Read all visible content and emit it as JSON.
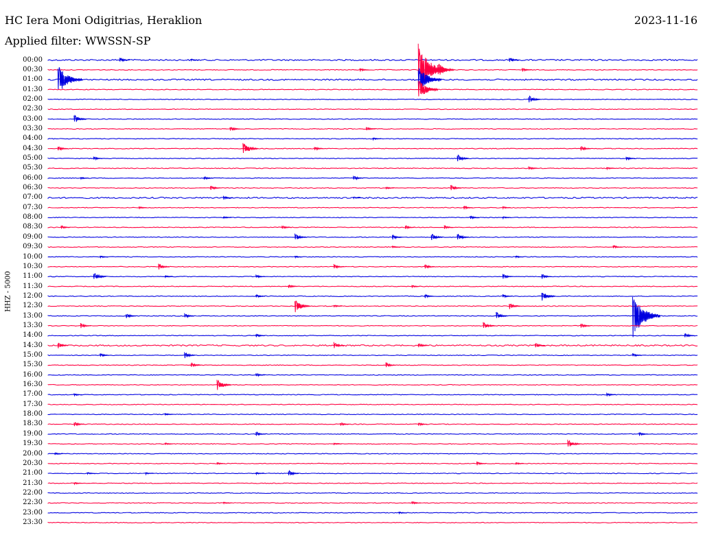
{
  "header": {
    "station": "HC Iera Moni Odigitrias, Heraklion",
    "date": "2023-11-16",
    "filter": "Applied filter: WWSSN-SP"
  },
  "chart_data": {
    "type": "line",
    "title": "HC Iera Moni Odigitrias, Heraklion",
    "ylabel": "HHZ - 5000",
    "xlabel": "",
    "colors": [
      "#0000e0",
      "#ff0040"
    ],
    "rows": [
      "00:00",
      "00:30",
      "01:00",
      "01:30",
      "02:00",
      "02:30",
      "03:00",
      "03:30",
      "04:00",
      "04:30",
      "05:00",
      "05:30",
      "06:00",
      "06:30",
      "07:00",
      "07:30",
      "08:00",
      "08:30",
      "09:00",
      "09:30",
      "10:00",
      "10:30",
      "11:00",
      "11:30",
      "12:00",
      "12:30",
      "13:00",
      "13:30",
      "14:00",
      "14:30",
      "15:00",
      "15:30",
      "16:00",
      "16:30",
      "17:00",
      "17:30",
      "18:00",
      "18:30",
      "19:00",
      "19:30",
      "20:00",
      "20:30",
      "21:00",
      "21:30",
      "22:00",
      "22:30",
      "23:00",
      "23:30"
    ],
    "noise": [
      2,
      1,
      2,
      1,
      1,
      1,
      1,
      1,
      1,
      1,
      1,
      1,
      1,
      1,
      2,
      1,
      1,
      1,
      1,
      1,
      1,
      1,
      1,
      1,
      1,
      1,
      1,
      1,
      1,
      2,
      1,
      1,
      1,
      1,
      1,
      1,
      1,
      1,
      1,
      1,
      1,
      1,
      1,
      1,
      1,
      1,
      1,
      1
    ],
    "events": [
      [
        [
          0.11,
          4
        ],
        [
          0.22,
          2
        ],
        [
          0.71,
          4
        ]
      ],
      [
        [
          0.48,
          3
        ],
        [
          0.57,
          40
        ],
        [
          0.6,
          12
        ],
        [
          0.73,
          3
        ]
      ],
      [
        [
          0.015,
          22
        ],
        [
          0.57,
          20
        ]
      ],
      [
        [
          0.57,
          16
        ]
      ],
      [
        [
          0.74,
          6
        ]
      ],
      [],
      [
        [
          0.04,
          7
        ]
      ],
      [
        [
          0.28,
          4
        ],
        [
          0.49,
          3
        ]
      ],
      [
        [
          0.5,
          2
        ]
      ],
      [
        [
          0.015,
          4
        ],
        [
          0.3,
          10
        ],
        [
          0.41,
          3
        ],
        [
          0.82,
          4
        ]
      ],
      [
        [
          0.07,
          3
        ],
        [
          0.63,
          6
        ],
        [
          0.89,
          3
        ]
      ],
      [
        [
          0.74,
          3
        ],
        [
          0.86,
          2
        ]
      ],
      [
        [
          0.05,
          2
        ],
        [
          0.24,
          3
        ],
        [
          0.47,
          4
        ]
      ],
      [
        [
          0.25,
          4
        ],
        [
          0.52,
          2
        ],
        [
          0.62,
          5
        ]
      ],
      [
        [
          0.27,
          3
        ],
        [
          0.47,
          2
        ]
      ],
      [
        [
          0.14,
          2
        ],
        [
          0.64,
          3
        ],
        [
          0.7,
          2
        ]
      ],
      [
        [
          0.27,
          2
        ],
        [
          0.65,
          3
        ],
        [
          0.7,
          2
        ]
      ],
      [
        [
          0.02,
          3
        ],
        [
          0.36,
          3
        ],
        [
          0.55,
          3
        ],
        [
          0.61,
          3
        ]
      ],
      [
        [
          0.38,
          6
        ],
        [
          0.53,
          4
        ],
        [
          0.59,
          6
        ],
        [
          0.63,
          6
        ]
      ],
      [
        [
          0.53,
          2
        ],
        [
          0.87,
          3
        ]
      ],
      [
        [
          0.08,
          2
        ],
        [
          0.38,
          2
        ],
        [
          0.72,
          2
        ]
      ],
      [
        [
          0.17,
          5
        ],
        [
          0.44,
          4
        ],
        [
          0.58,
          4
        ]
      ],
      [
        [
          0.07,
          7
        ],
        [
          0.18,
          2
        ],
        [
          0.32,
          3
        ],
        [
          0.7,
          4
        ],
        [
          0.76,
          4
        ]
      ],
      [
        [
          0.37,
          3
        ],
        [
          0.56,
          2
        ]
      ],
      [
        [
          0.32,
          3
        ],
        [
          0.58,
          3
        ],
        [
          0.7,
          3
        ],
        [
          0.76,
          8
        ]
      ],
      [
        [
          0.38,
          10
        ],
        [
          0.44,
          2
        ],
        [
          0.71,
          5
        ]
      ],
      [
        [
          0.12,
          4
        ],
        [
          0.21,
          4
        ],
        [
          0.69,
          6
        ],
        [
          0.9,
          34
        ]
      ],
      [
        [
          0.05,
          4
        ],
        [
          0.67,
          6
        ],
        [
          0.82,
          4
        ]
      ],
      [
        [
          0.32,
          3
        ],
        [
          0.98,
          4
        ]
      ],
      [
        [
          0.015,
          5
        ],
        [
          0.44,
          5
        ],
        [
          0.57,
          4
        ],
        [
          0.75,
          4
        ]
      ],
      [
        [
          0.08,
          3
        ],
        [
          0.21,
          5
        ],
        [
          0.9,
          3
        ]
      ],
      [
        [
          0.22,
          4
        ],
        [
          0.52,
          4
        ]
      ],
      [
        [
          0.32,
          3
        ]
      ],
      [
        [
          0.26,
          9
        ]
      ],
      [
        [
          0.04,
          2
        ],
        [
          0.86,
          3
        ]
      ],
      [],
      [
        [
          0.18,
          2
        ]
      ],
      [
        [
          0.04,
          4
        ],
        [
          0.45,
          3
        ],
        [
          0.57,
          3
        ]
      ],
      [
        [
          0.32,
          4
        ],
        [
          0.91,
          3
        ]
      ],
      [
        [
          0.18,
          2
        ],
        [
          0.44,
          2
        ],
        [
          0.8,
          7
        ]
      ],
      [
        [
          0.01,
          2
        ]
      ],
      [
        [
          0.26,
          2
        ],
        [
          0.66,
          3
        ],
        [
          0.72,
          2
        ]
      ],
      [
        [
          0.06,
          2
        ],
        [
          0.15,
          2
        ],
        [
          0.32,
          2
        ],
        [
          0.37,
          5
        ]
      ],
      [
        [
          0.04,
          2
        ]
      ],
      [],
      [
        [
          0.27,
          2
        ],
        [
          0.56,
          3
        ]
      ],
      [
        [
          0.54,
          2
        ]
      ],
      []
    ]
  }
}
